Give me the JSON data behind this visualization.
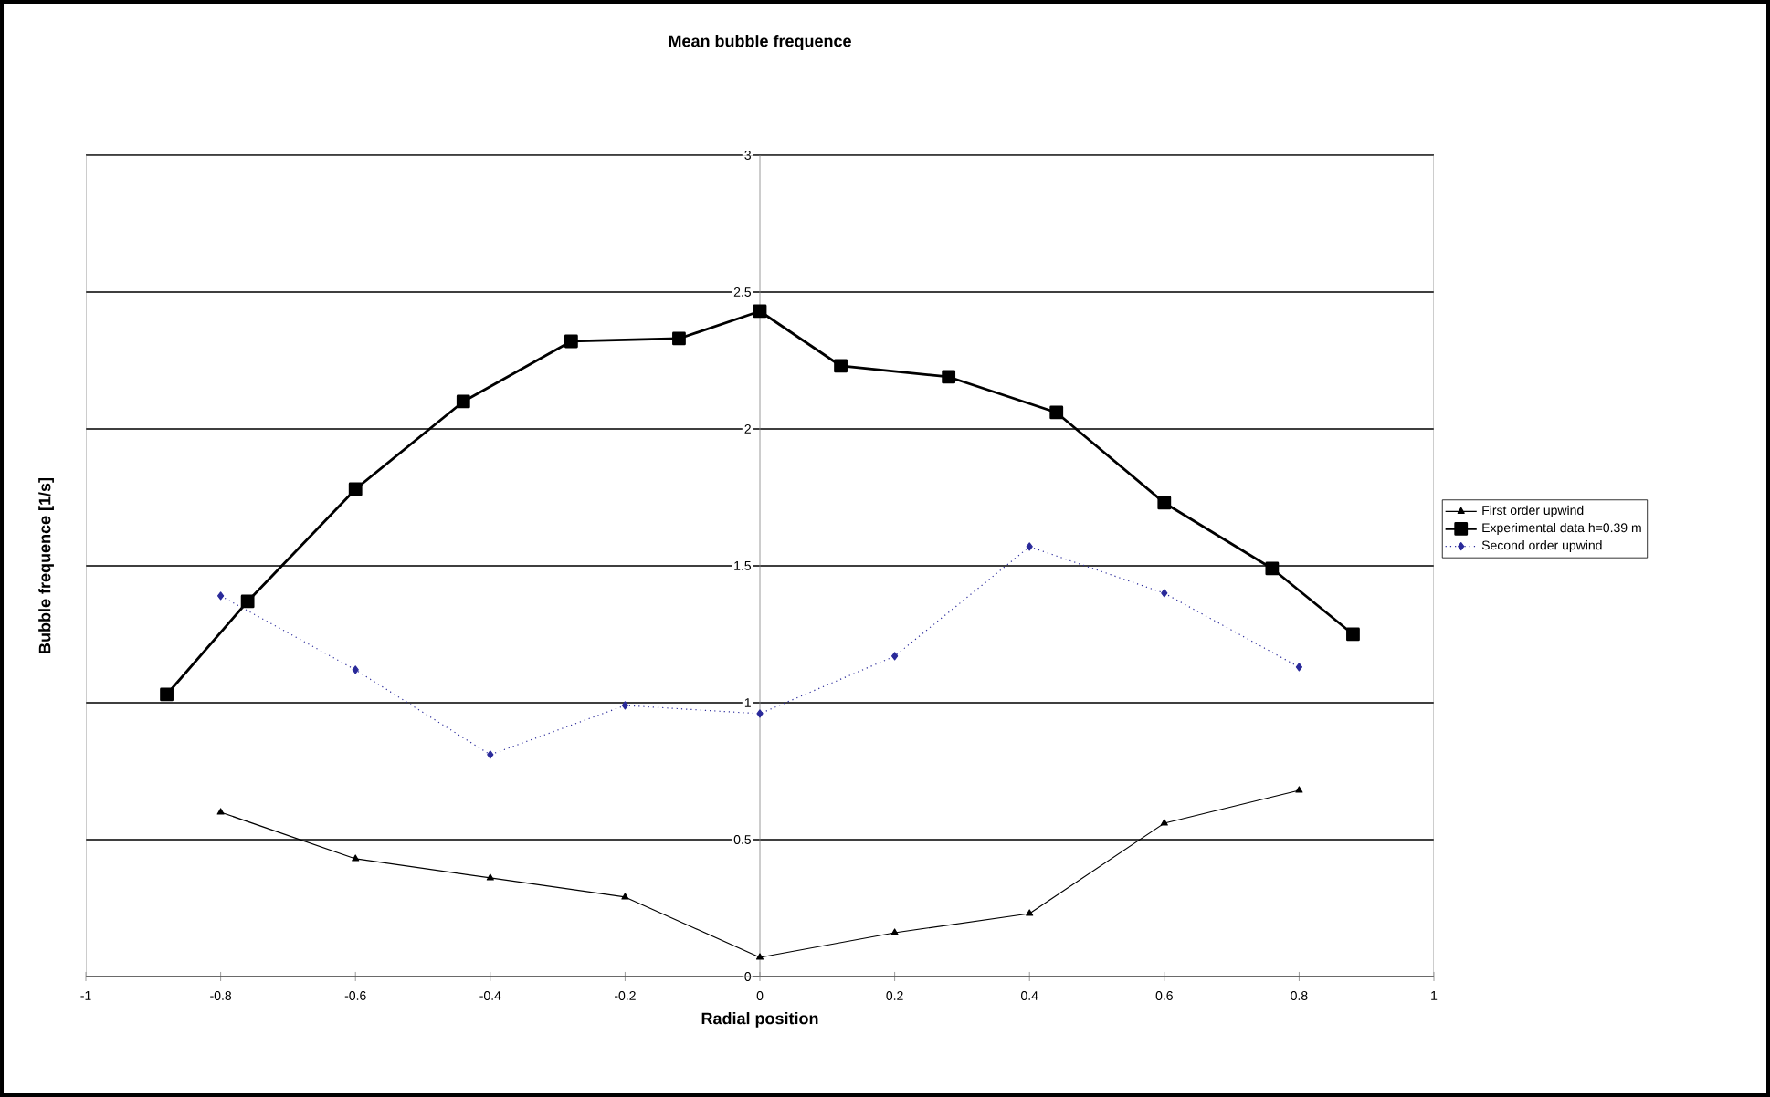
{
  "chart_data": {
    "type": "line",
    "title": "Mean bubble frequence",
    "xlabel": "Radial position",
    "ylabel": "Bubble frequence [1/s]",
    "xlim": [
      -1,
      1
    ],
    "xticks": [
      -1,
      -0.8,
      -0.6,
      -0.4,
      -0.2,
      0,
      0.2,
      0.4,
      0.6,
      0.8,
      1
    ],
    "ylim": [
      0,
      3
    ],
    "yticks": [
      0,
      0.5,
      1,
      1.5,
      2,
      2.5,
      3
    ],
    "grid": "y",
    "legend": "right",
    "series": [
      {
        "name": "First order upwind",
        "color": "#000000",
        "marker": "triangle",
        "line_style": "solid",
        "x": [
          -0.8,
          -0.6,
          -0.4,
          -0.2,
          0,
          0.2,
          0.4,
          0.6,
          0.8
        ],
        "values": [
          0.6,
          0.43,
          0.36,
          0.29,
          0.07,
          0.16,
          0.23,
          0.56,
          0.68
        ]
      },
      {
        "name": "Experimental data h=0.39 m",
        "color": "#000000",
        "marker": "square",
        "line_style": "solid",
        "x": [
          -0.88,
          -0.76,
          -0.6,
          -0.44,
          -0.28,
          -0.12,
          0,
          0.12,
          0.28,
          0.44,
          0.6,
          0.76,
          0.88
        ],
        "values": [
          1.03,
          1.37,
          1.78,
          2.1,
          2.32,
          2.33,
          2.43,
          2.23,
          2.19,
          2.06,
          1.73,
          1.49,
          1.25
        ]
      },
      {
        "name": "Second order upwind",
        "color": "#2a2a9a",
        "marker": "diamond",
        "line_style": "dotted",
        "x": [
          -0.8,
          -0.6,
          -0.4,
          -0.2,
          0,
          0.2,
          0.4,
          0.6,
          0.8
        ],
        "values": [
          1.39,
          1.12,
          0.81,
          0.99,
          0.96,
          1.17,
          1.57,
          1.4,
          1.13
        ]
      }
    ]
  }
}
